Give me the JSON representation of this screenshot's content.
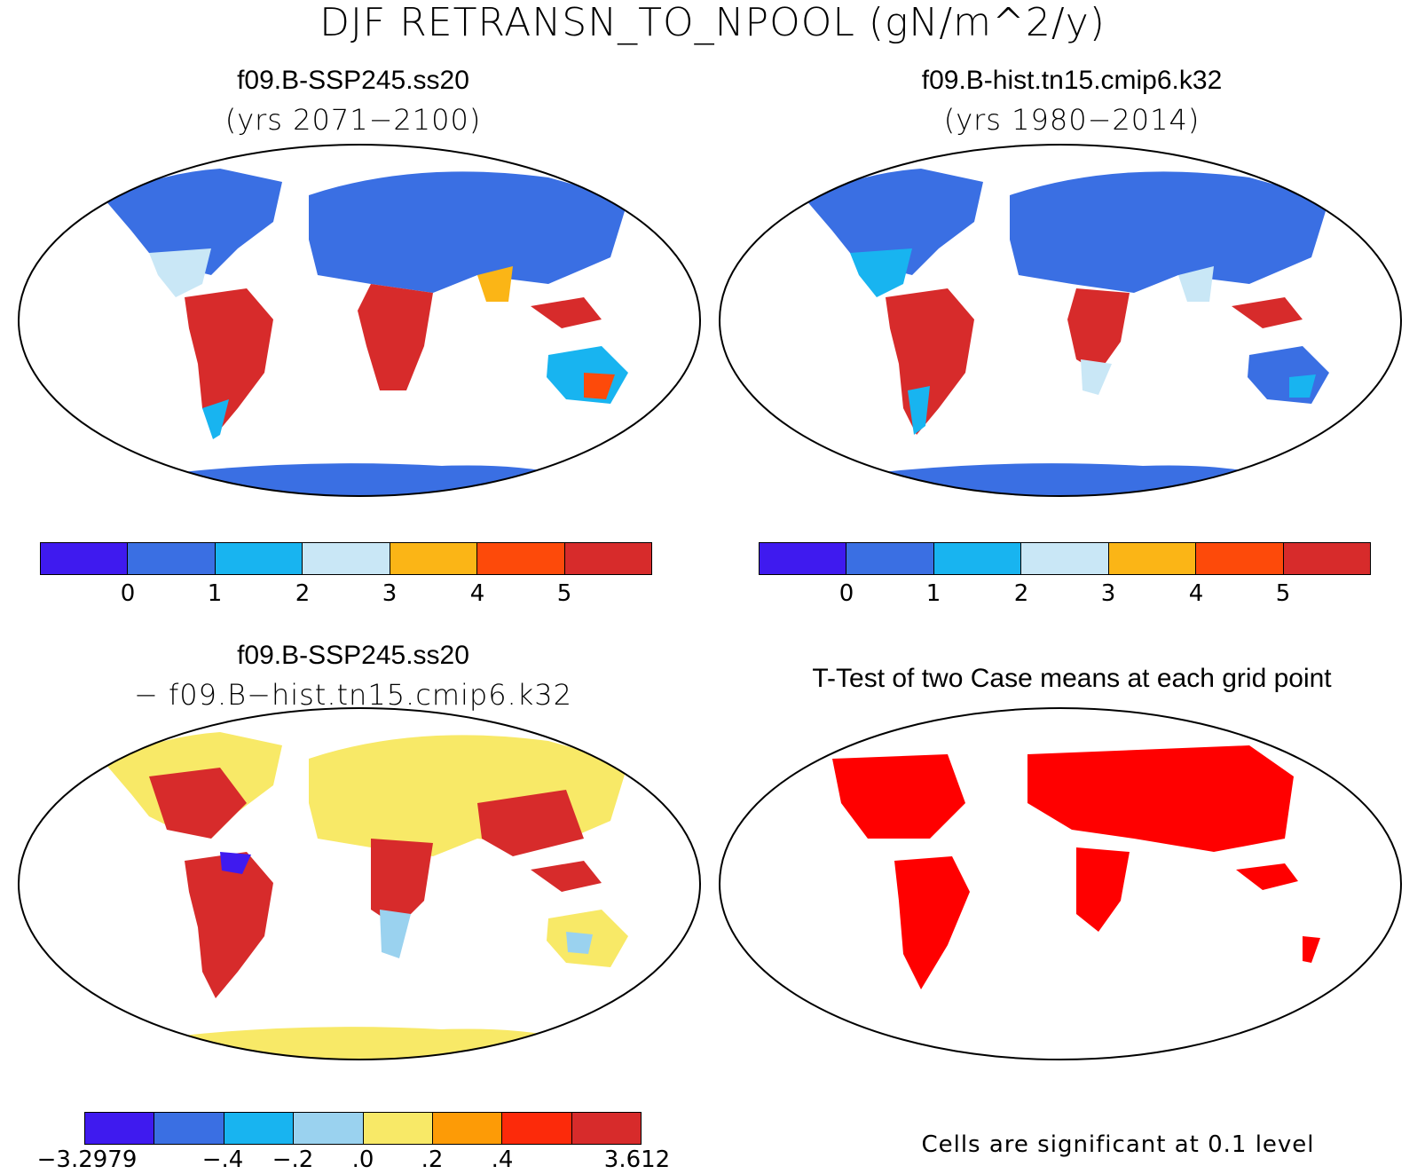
{
  "title": "DJF RETRANSN_TO_NPOOL (gN/m^2/y)",
  "panels": [
    {
      "case": "f09.B-SSP245.ss20",
      "subtitle": "(yrs 2071−2100)"
    },
    {
      "case": "f09.B-hist.tn15.cmip6.k32",
      "subtitle": "(yrs 1980−2014)"
    },
    {
      "case": "f09.B-SSP245.ss20",
      "subtitle": "− f09.B−hist.tn15.cmip6.k32"
    },
    {
      "case": "T-Test of two Case means at each grid point",
      "subtitle": ""
    }
  ],
  "colorbar_abs": {
    "colors": [
      "#3f1aef",
      "#3a6fe3",
      "#18b4f0",
      "#c9e7f6",
      "#fbb516",
      "#fd4a0a",
      "#d72b2b"
    ],
    "labels": [
      "0",
      "1",
      "2",
      "3",
      "4",
      "5"
    ]
  },
  "colorbar_diff": {
    "colors": [
      "#3f1aef",
      "#3a6fe3",
      "#18b4f0",
      "#9ad2ef",
      "#f8e967",
      "#fd9b06",
      "#fc2a0a",
      "#d72b2b"
    ],
    "labels": [
      "−3.2979",
      "−.4",
      "−.2",
      ".0",
      ".2",
      ".4",
      "3.612"
    ]
  },
  "significance_note": "Cells are significant at 0.1 level",
  "significance_color": "#ff0000"
}
